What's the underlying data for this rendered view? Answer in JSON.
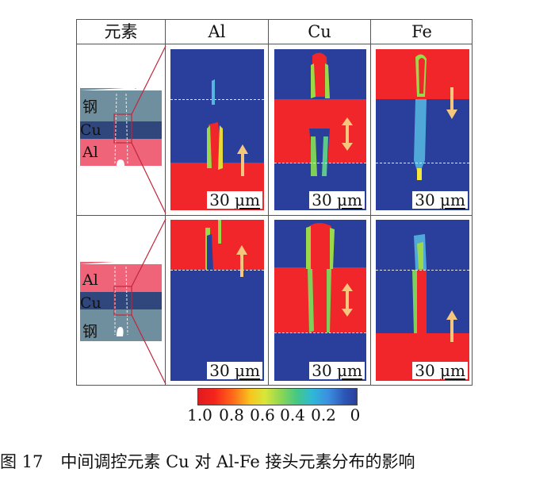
{
  "table": {
    "headers": {
      "element": "元素",
      "al": "Al",
      "cu": "Cu",
      "fe": "Fe"
    },
    "rows": [
      {
        "schematic_labels": {
          "top": "钢",
          "middle": "Cu",
          "bottom": "Al"
        }
      },
      {
        "schematic_labels": {
          "top": "Al",
          "middle": "Cu",
          "bottom": "钢"
        }
      }
    ],
    "scale_bar": {
      "value": "30",
      "unit": "μm"
    }
  },
  "legend": {
    "ticks": [
      "1.0",
      "0.8",
      "0.6",
      "0.4",
      "0.2",
      "0"
    ],
    "colors": {
      "high": "#f0262a",
      "low": "#2a3f9b"
    }
  },
  "caption": {
    "number": "图 17",
    "text": "中间调控元素 Cu 对 Al-Fe 接头元素分布的影响"
  }
}
